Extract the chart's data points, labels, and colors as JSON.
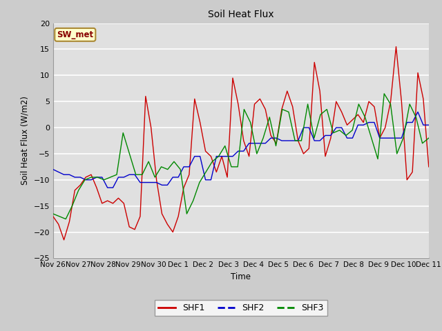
{
  "title": "Soil Heat Flux",
  "ylabel": "Soil Heat Flux (W/m2)",
  "xlabel": "Time",
  "ylim": [
    -25,
    20
  ],
  "colors": {
    "SHF1": "#cc0000",
    "SHF2": "#0000cc",
    "SHF3": "#008800"
  },
  "annotation_text": "SW_met",
  "annotation_box_color": "#ffffcc",
  "annotation_box_edge": "#aa8833",
  "annotation_text_color": "#880000",
  "x_labels": [
    "Nov 26",
    "Nov 27",
    "Nov 28",
    "Nov 29",
    "Nov 30",
    "Dec 1",
    "Dec 2",
    "Dec 3",
    "Dec 4",
    "Dec 5",
    "Dec 6",
    "Dec 7",
    "Dec 8",
    "Dec 9",
    "Dec 10",
    "Dec 11"
  ],
  "shf1": [
    -17.0,
    -18.5,
    -21.5,
    -18.0,
    -12.0,
    -11.0,
    -9.5,
    -9.0,
    -11.5,
    -14.5,
    -14.0,
    -14.5,
    -13.5,
    -14.5,
    -19.0,
    -19.5,
    -17.0,
    6.0,
    0.0,
    -10.0,
    -16.5,
    -18.5,
    -20.0,
    -17.0,
    -11.5,
    -9.0,
    5.5,
    1.0,
    -4.5,
    -5.5,
    -8.5,
    -5.5,
    -9.5,
    9.5,
    4.5,
    -2.5,
    -5.5,
    4.5,
    5.5,
    3.5,
    -1.5,
    -3.0,
    3.5,
    7.0,
    4.0,
    -2.5,
    -5.0,
    -4.0,
    12.5,
    7.0,
    -5.5,
    -2.0,
    5.0,
    3.0,
    0.5,
    1.5,
    2.5,
    1.0,
    5.0,
    4.0,
    -2.0,
    0.0,
    5.0,
    15.5,
    5.0,
    -10.0,
    -8.5,
    10.5,
    5.5,
    -7.5
  ],
  "shf2": [
    -8.0,
    -8.5,
    -9.0,
    -9.0,
    -9.5,
    -9.5,
    -10.0,
    -10.0,
    -9.5,
    -9.5,
    -11.5,
    -11.5,
    -9.5,
    -9.5,
    -9.0,
    -9.0,
    -10.5,
    -10.5,
    -10.5,
    -10.5,
    -11.0,
    -11.0,
    -9.5,
    -9.5,
    -7.5,
    -7.5,
    -5.5,
    -5.5,
    -10.0,
    -10.0,
    -5.5,
    -5.5,
    -5.5,
    -5.5,
    -4.5,
    -4.5,
    -3.0,
    -3.0,
    -3.0,
    -3.0,
    -2.0,
    -2.0,
    -2.5,
    -2.5,
    -2.5,
    -2.5,
    0.0,
    0.0,
    -2.5,
    -2.5,
    -1.5,
    -1.5,
    0.0,
    0.0,
    -2.0,
    -2.0,
    0.5,
    0.5,
    1.0,
    1.0,
    -2.0,
    -2.0,
    -2.0,
    -2.0,
    -2.0,
    1.0,
    1.0,
    3.0,
    0.5,
    0.5
  ],
  "shf3": [
    -16.5,
    -17.0,
    -17.5,
    -15.0,
    -12.0,
    -10.0,
    -9.5,
    -9.5,
    -10.0,
    -9.5,
    -9.0,
    -1.0,
    -5.0,
    -9.0,
    -9.0,
    -6.5,
    -9.5,
    -7.5,
    -8.0,
    -6.5,
    -8.0,
    -16.5,
    -14.0,
    -10.5,
    -8.5,
    -6.5,
    -5.5,
    -3.5,
    -7.5,
    -7.5,
    3.5,
    1.0,
    -5.0,
    -2.0,
    2.0,
    -3.5,
    3.5,
    3.0,
    -2.5,
    -2.5,
    4.5,
    -2.0,
    2.5,
    3.5,
    -1.0,
    -0.5,
    -1.5,
    -0.5,
    4.5,
    2.0,
    -2.0,
    -6.0,
    6.5,
    4.5,
    -5.0,
    -2.0,
    4.5,
    2.0,
    -3.0,
    -2.0
  ]
}
